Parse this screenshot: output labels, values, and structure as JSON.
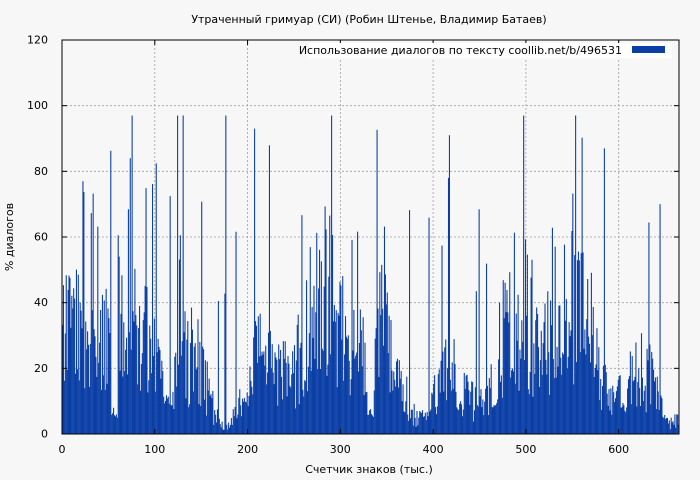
{
  "chart_data": {
    "type": "bar",
    "title": "Утраченный гримуар (СИ) (Робин Штенье, Владимир Батаев)",
    "xlabel": "Счетчик знаков (тыс.)",
    "ylabel": "% диалогов",
    "xlim": [
      0,
      665
    ],
    "ylim": [
      0,
      120
    ],
    "xticks": [
      "0",
      "100",
      "200",
      "300",
      "400",
      "500",
      "600"
    ],
    "yticks": [
      "0",
      "20",
      "40",
      "60",
      "80",
      "100",
      "120"
    ],
    "grid": true,
    "legend_position": "top-right",
    "series": [
      {
        "name": "Использование диалогов по тексту  coollib.net/b/496531",
        "color": "#0b3fa6",
        "values_note": "values approximated; 665 bars of 0-97"
      }
    ]
  }
}
